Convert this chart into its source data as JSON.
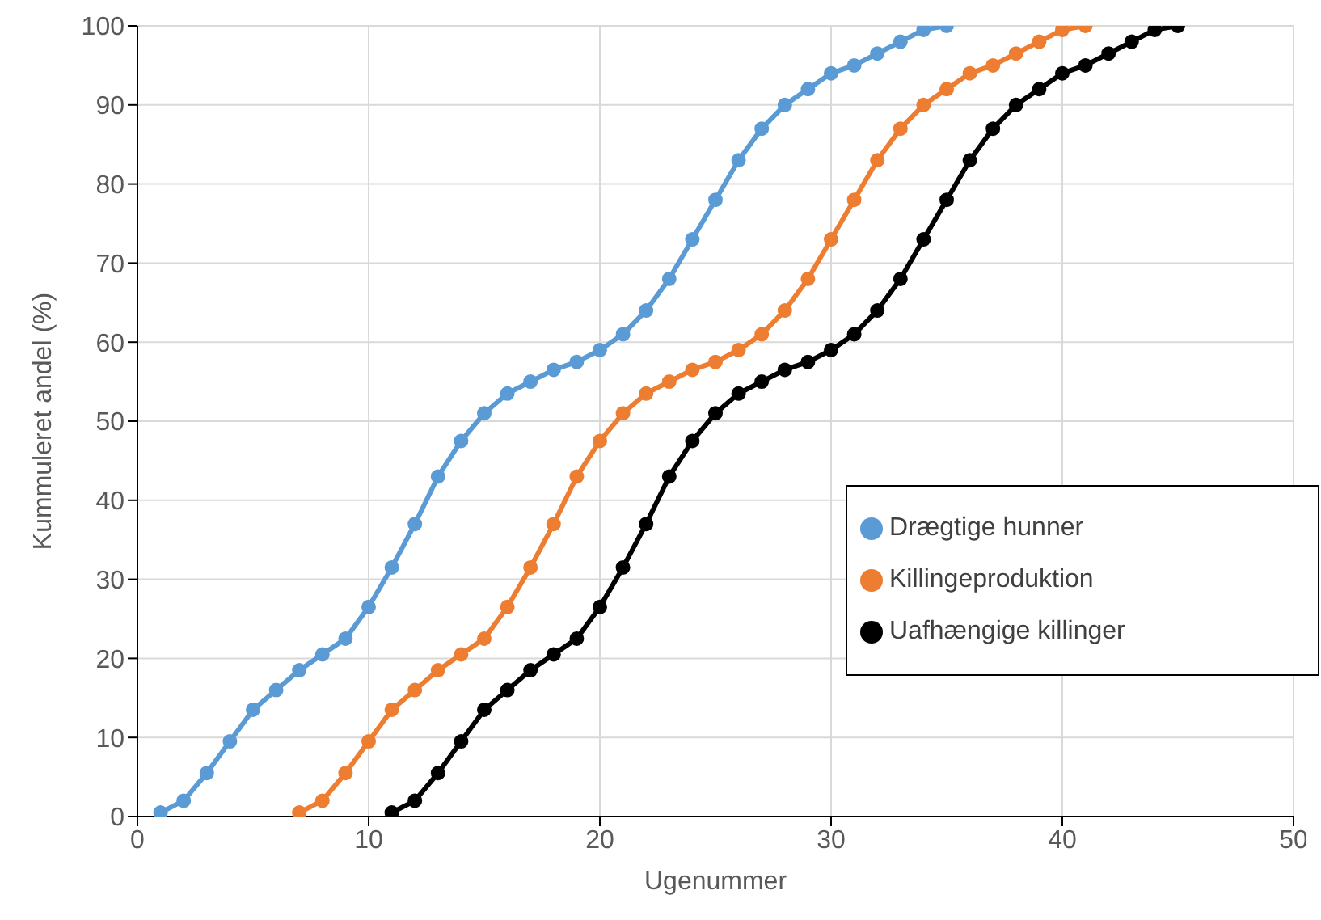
{
  "chart_data": {
    "type": "line",
    "xlabel": "Ugenummer",
    "ylabel": "Kummuleret andel (%)",
    "xlim": [
      0,
      50
    ],
    "xticks": [
      0,
      10,
      20,
      30,
      40,
      50
    ],
    "ylim": [
      0,
      100
    ],
    "yticks": [
      0,
      10,
      20,
      30,
      40,
      50,
      60,
      70,
      80,
      90,
      100
    ],
    "grid": true,
    "legend": "bottom right",
    "marker": "circle",
    "series": [
      {
        "name": "Drægtige hunner",
        "color": "#5b9bd5",
        "x": [
          1,
          2,
          3,
          4,
          5,
          6,
          7,
          8,
          9,
          10,
          11,
          12,
          13,
          14,
          15,
          16,
          17,
          18,
          19,
          20,
          21,
          22,
          23,
          24,
          25,
          26,
          27,
          28,
          29,
          30,
          31,
          32,
          33,
          34,
          35
        ],
        "values": [
          0.5,
          2,
          5.5,
          9.5,
          13.5,
          16,
          18.5,
          20.5,
          22.5,
          26.5,
          31.5,
          37,
          43,
          47.5,
          51,
          53.5,
          55,
          56.5,
          57.5,
          59,
          61,
          64,
          68,
          73,
          78,
          83,
          87,
          90,
          92,
          94,
          95,
          96.5,
          98,
          99.5,
          100
        ]
      },
      {
        "name": "Killingeproduktion",
        "color": "#ed7d31",
        "x": [
          7,
          8,
          9,
          10,
          11,
          12,
          13,
          14,
          15,
          16,
          17,
          18,
          19,
          20,
          21,
          22,
          23,
          24,
          25,
          26,
          27,
          28,
          29,
          30,
          31,
          32,
          33,
          34,
          35,
          36,
          37,
          38,
          39,
          40,
          41
        ],
        "values": [
          0.5,
          2,
          5.5,
          9.5,
          13.5,
          16,
          18.5,
          20.5,
          22.5,
          26.5,
          31.5,
          37,
          43,
          47.5,
          51,
          53.5,
          55,
          56.5,
          57.5,
          59,
          61,
          64,
          68,
          73,
          78,
          83,
          87,
          90,
          92,
          94,
          95,
          96.5,
          98,
          99.5,
          100
        ]
      },
      {
        "name": "Uafhængige killinger",
        "color": "#000000",
        "x": [
          11,
          12,
          13,
          14,
          15,
          16,
          17,
          18,
          19,
          20,
          21,
          22,
          23,
          24,
          25,
          26,
          27,
          28,
          29,
          30,
          31,
          32,
          33,
          34,
          35,
          36,
          37,
          38,
          39,
          40,
          41,
          42,
          43,
          44,
          45
        ],
        "values": [
          0.5,
          2,
          5.5,
          9.5,
          13.5,
          16,
          18.5,
          20.5,
          22.5,
          26.5,
          31.5,
          37,
          43,
          47.5,
          51,
          53.5,
          55,
          56.5,
          57.5,
          59,
          61,
          64,
          68,
          73,
          78,
          83,
          87,
          90,
          92,
          94,
          95,
          96.5,
          98,
          99.5,
          100
        ]
      }
    ]
  }
}
